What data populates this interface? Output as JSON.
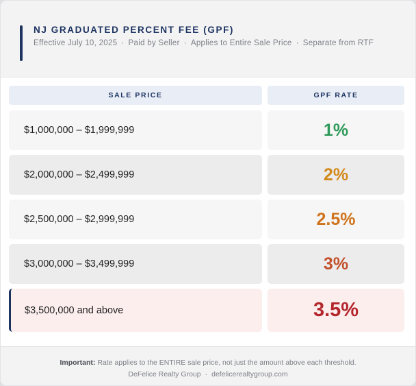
{
  "header": {
    "title": "NJ GRADUATED PERCENT FEE (GPF)",
    "meta": [
      "Effective July 10, 2025",
      "Paid by Seller",
      "Applies to Entire Sale Price",
      "Separate from RTF"
    ],
    "separator": "·"
  },
  "table": {
    "columns": [
      "SALE PRICE",
      "GPF RATE"
    ],
    "rows": [
      {
        "price": "$1,000,000 – $1,999,999",
        "rate": "1%",
        "rate_color": "#2e9a5a"
      },
      {
        "price": "$2,000,000 – $2,499,999",
        "rate": "2%",
        "rate_color": "#d38a1c"
      },
      {
        "price": "$2,500,000 – $2,999,999",
        "rate": "2.5%",
        "rate_color": "#cf741c"
      },
      {
        "price": "$3,000,000 – $3,499,999",
        "rate": "3%",
        "rate_color": "#c2512c"
      },
      {
        "price": "$3,500,000 and above",
        "rate": "3.5%",
        "rate_color": "#b3262c",
        "highlighted": true
      }
    ]
  },
  "footer": {
    "note_label": "Important:",
    "note_text": "Rate applies to the ENTIRE sale price, not just the amount above each threshold.",
    "brand_name": "DeFelice Realty Group",
    "separator": "·",
    "brand_url": "defelicerealtygroup.com"
  },
  "colors": {
    "navy": "#1d3461",
    "highlight_bg": "#fdeeee"
  }
}
